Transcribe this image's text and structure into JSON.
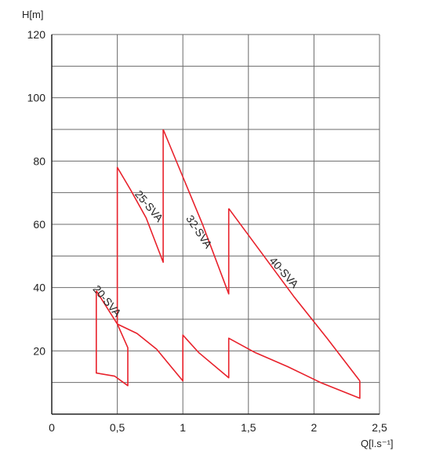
{
  "chart_data": {
    "type": "line",
    "title": "",
    "xlabel": "Q[l.s⁻¹]",
    "ylabel": "H[m]",
    "xlim": [
      0,
      2.5
    ],
    "ylim": [
      0,
      120
    ],
    "grid": true,
    "x_ticks": [
      0,
      0.5,
      1,
      1.5,
      2,
      2.5
    ],
    "x_tick_labels": [
      "0",
      "0,5",
      "1",
      "1,5",
      "2",
      "2,5"
    ],
    "y_ticks": [
      20,
      40,
      60,
      80,
      100,
      120
    ],
    "y_tick_labels": [
      "20",
      "40",
      "60",
      "80",
      "100",
      "120"
    ],
    "line_color": "#e8212b",
    "series": [
      {
        "name": "20-SVA",
        "label_pos": [
          0.4,
          35
        ],
        "label_angle": 50,
        "points": [
          [
            0.34,
            39
          ],
          [
            0.5,
            28.5
          ],
          [
            0.58,
            21
          ],
          [
            0.58,
            9
          ],
          [
            0.48,
            12
          ],
          [
            0.34,
            13
          ],
          [
            0.34,
            39
          ]
        ]
      },
      {
        "name": "",
        "label_pos": null,
        "label_angle": 0,
        "points": [
          [
            0.5,
            28.5
          ],
          [
            0.65,
            25.5
          ],
          [
            0.8,
            20.5
          ],
          [
            0.92,
            14.5
          ],
          [
            1.0,
            10.5
          ],
          [
            1.0,
            25
          ],
          [
            1.12,
            19.5
          ],
          [
            1.35,
            11.5
          ],
          [
            1.35,
            24
          ],
          [
            1.55,
            19.5
          ],
          [
            1.8,
            15
          ],
          [
            2.05,
            10
          ],
          [
            2.35,
            5
          ],
          [
            2.35,
            10.5
          ]
        ]
      },
      {
        "name": "25-SVA",
        "label_pos": [
          0.72,
          65
        ],
        "label_angle": 50,
        "points": [
          [
            0.5,
            28.5
          ],
          [
            0.5,
            78
          ],
          [
            0.6,
            71
          ],
          [
            0.72,
            62
          ],
          [
            0.85,
            48
          ],
          [
            0.85,
            90
          ]
        ]
      },
      {
        "name": "32-SVA",
        "label_pos": [
          1.1,
          57
        ],
        "label_angle": 56,
        "points": [
          [
            0.85,
            90
          ],
          [
            1.0,
            75
          ],
          [
            1.15,
            60
          ],
          [
            1.35,
            38
          ],
          [
            1.35,
            65
          ]
        ]
      },
      {
        "name": "40-SVA",
        "label_pos": [
          1.75,
          44
        ],
        "label_angle": 48,
        "points": [
          [
            1.35,
            65
          ],
          [
            1.6,
            51
          ],
          [
            1.85,
            37
          ],
          [
            2.1,
            24
          ],
          [
            2.35,
            10.5
          ]
        ]
      }
    ]
  }
}
